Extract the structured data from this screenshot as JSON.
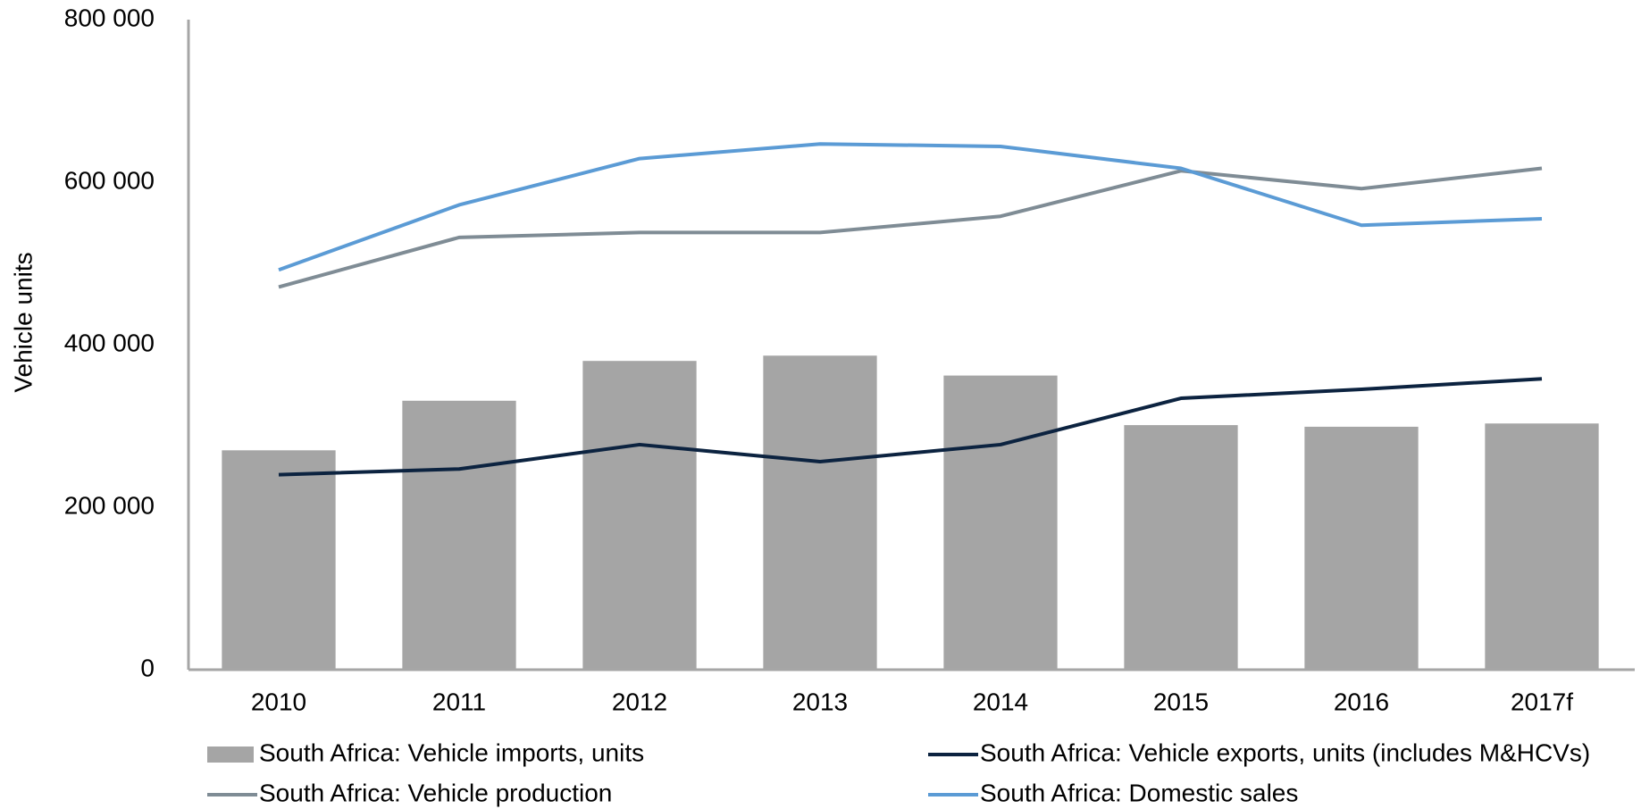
{
  "chart_data": {
    "type": "bar",
    "y_label": "Vehicle units",
    "categories": [
      "2010",
      "2011",
      "2012",
      "2013",
      "2014",
      "2015",
      "2016",
      "2017f"
    ],
    "series": [
      {
        "name": "South Africa: Vehicle imports, units",
        "type": "bar",
        "color": "#a5a5a5",
        "values": [
          270000,
          331000,
          380000,
          386500,
          362000,
          301000,
          299000,
          303000
        ]
      },
      {
        "name": "South Africa: Vehicle exports, units (includes M&HCVs)",
        "type": "line",
        "color": "#0c2340",
        "values": [
          240000,
          247000,
          277000,
          256000,
          277000,
          334000,
          345000,
          358000
        ]
      },
      {
        "name": "South Africa: Vehicle production",
        "type": "line",
        "color": "#7f8c95",
        "values": [
          471000,
          532000,
          538000,
          538000,
          558000,
          614000,
          592000,
          617000
        ]
      },
      {
        "name": "South Africa: Domestic sales",
        "type": "line",
        "color": "#5b9bd5",
        "values": [
          492000,
          572000,
          629000,
          647000,
          644000,
          617000,
          547000,
          555000
        ]
      }
    ],
    "ylim": [
      0,
      800000
    ],
    "yticks": [
      0,
      {
        "value": 200000,
        "label": "200 000"
      },
      {
        "value": 400000,
        "label": "400 000"
      },
      {
        "value": 600000,
        "label": "600 000"
      },
      {
        "value": 800000,
        "label": "800 000"
      }
    ],
    "grid": false
  }
}
